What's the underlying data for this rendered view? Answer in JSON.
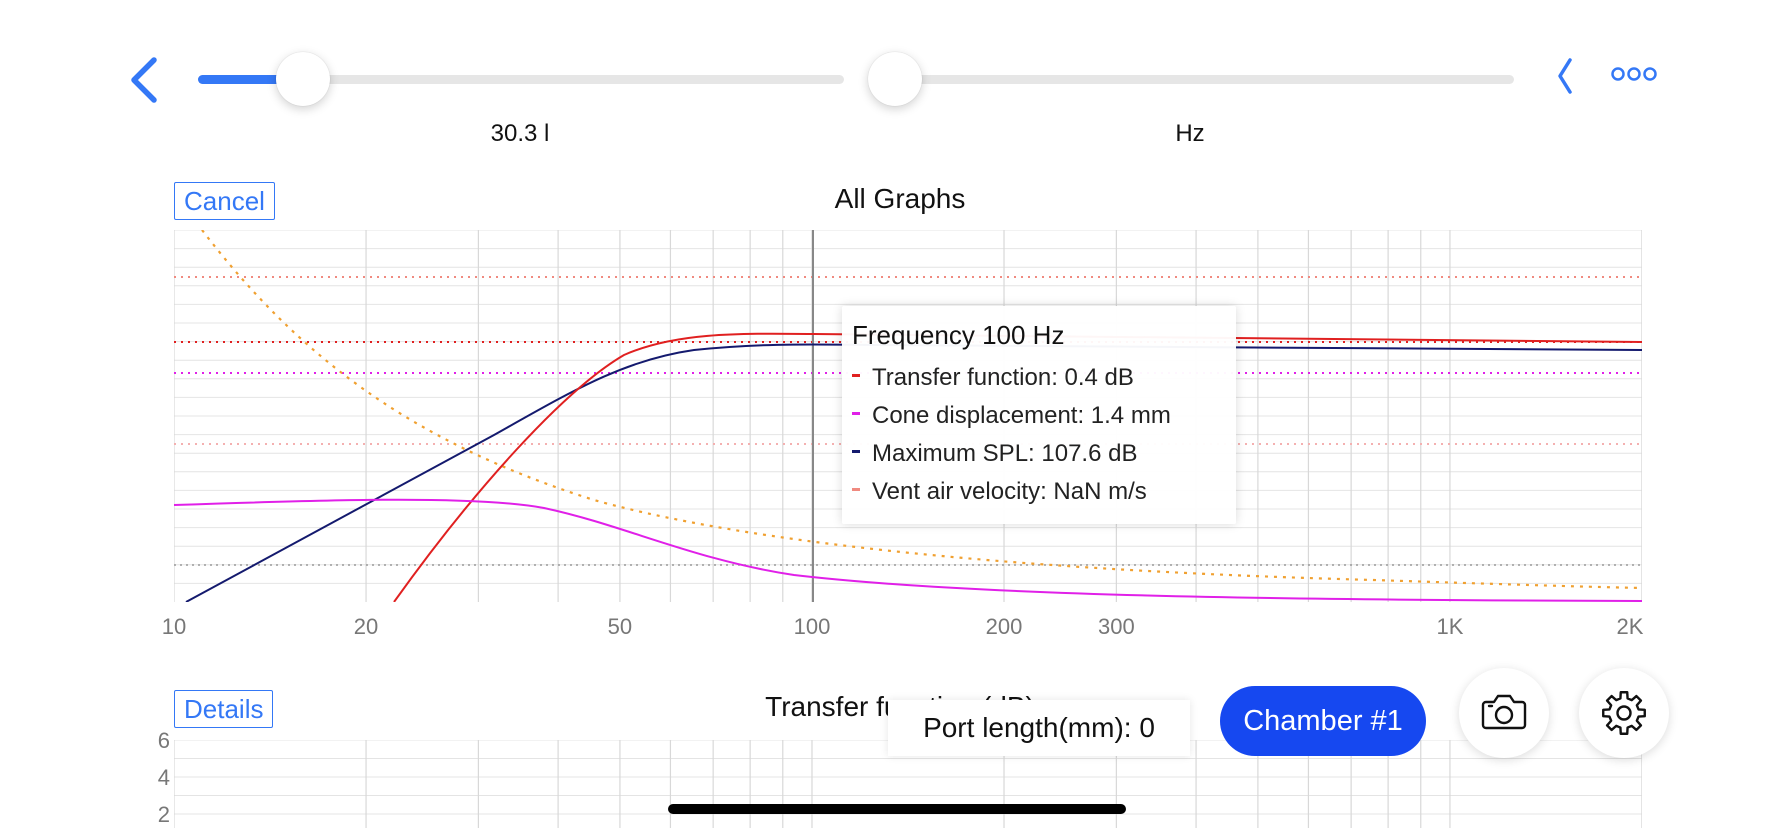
{
  "header": {
    "volume_label": "30.3 l",
    "frequency_label": "Hz",
    "volume_slider_fraction": 0.15,
    "frequency_slider_fraction": 0.0
  },
  "graph1": {
    "cancel_label": "Cancel",
    "title": "All Graphs",
    "x_ticks": [
      {
        "label": "10",
        "value": 10
      },
      {
        "label": "20",
        "value": 20
      },
      {
        "label": "50",
        "value": 50
      },
      {
        "label": "100",
        "value": 100
      },
      {
        "label": "200",
        "value": 200
      },
      {
        "label": "300",
        "value": 300
      },
      {
        "label": "1K",
        "value": 1000
      },
      {
        "label": "2K",
        "value": 2000
      }
    ]
  },
  "tooltip": {
    "title": "Frequency 100 Hz",
    "rows": [
      {
        "text": "Transfer function: 0.4 dB",
        "color": "#e02020"
      },
      {
        "text": "Cone displacement: 1.4 mm",
        "color": "#e020e8"
      },
      {
        "text": "Maximum SPL: 107.6 dB",
        "color": "#141a6e"
      },
      {
        "text": "Vent air velocity: NaN m/s",
        "color": "#f08a80"
      }
    ]
  },
  "graph2": {
    "details_label": "Details",
    "title": "Transfer function (dB)",
    "y_ticks": [
      {
        "label": "6",
        "value": 6
      },
      {
        "label": "4",
        "value": 4
      },
      {
        "label": "2",
        "value": 2
      }
    ]
  },
  "controls": {
    "port_length_label": "Port length(mm):",
    "port_length_value": "0",
    "chamber_label": "Chamber #1",
    "camera_icon": "camera-icon",
    "settings_icon": "gear-icon"
  },
  "colors": {
    "accent": "#3478f6",
    "chamber_button": "#1648f0",
    "transfer": "#e02020",
    "cone": "#e020e8",
    "spl": "#141a6e",
    "vent": "#f08a80",
    "impedance": "#f0a030"
  }
}
